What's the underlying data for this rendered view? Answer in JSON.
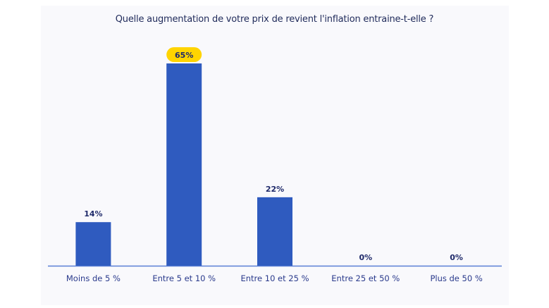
{
  "chart_data": {
    "type": "bar",
    "title": "Quelle augmentation de votre prix de revient l'inflation entraine-t-elle ?",
    "categories": [
      "Moins de 5 %",
      "Entre 5 et 10 %",
      "Entre 10 et 25 %",
      "Entre 25 et 50 %",
      "Plus de 50 %"
    ],
    "values": [
      14,
      65,
      22,
      0,
      0
    ],
    "value_labels": [
      "14%",
      "65%",
      "22%",
      "0%",
      "0%"
    ],
    "highlight_index": 1,
    "ylim": [
      0,
      65
    ],
    "xlabel": "",
    "ylabel": "",
    "grid": false,
    "colors": {
      "bar": "#2f5bbf",
      "highlight_badge": "#ffd400",
      "axis": "#5a7fd6",
      "text": "#1f2a6a"
    }
  }
}
